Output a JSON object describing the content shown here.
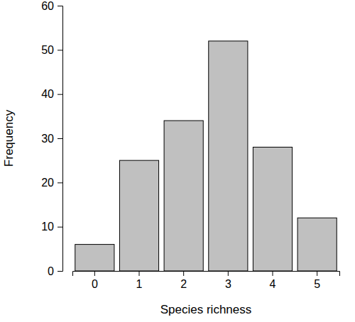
{
  "chart_data": {
    "type": "bar",
    "x_label": "Species richness",
    "y_label": "Frequency",
    "categories": [
      "0",
      "1",
      "2",
      "3",
      "4",
      "5"
    ],
    "values": [
      6,
      25,
      34,
      52,
      28,
      12
    ],
    "color": "#c0c0c0",
    "ylim": [
      0,
      60
    ],
    "yticks": [
      0,
      10,
      20,
      30,
      40,
      50,
      60
    ],
    "grid": false
  }
}
